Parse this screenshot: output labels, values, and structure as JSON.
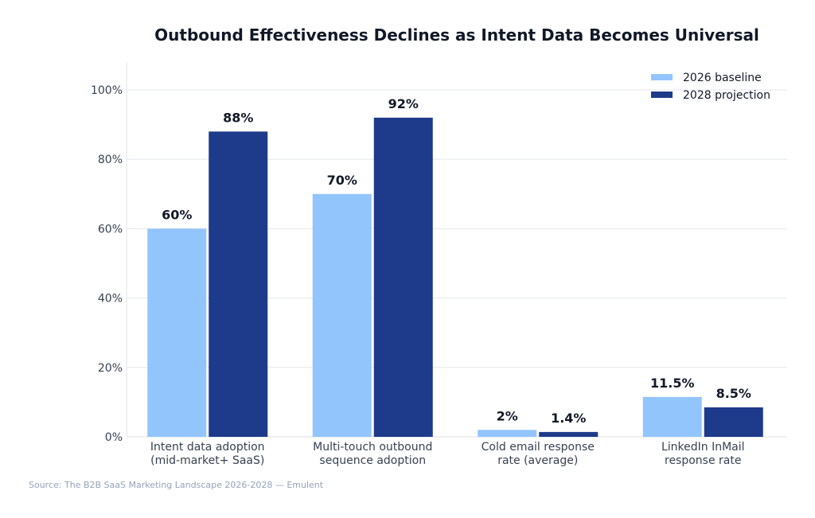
{
  "chart_data": {
    "type": "bar",
    "title": "Outbound Effectiveness Declines as Intent Data Becomes Universal",
    "categories": [
      [
        "Intent data adoption",
        "(mid-market+ SaaS)"
      ],
      [
        "Multi-touch outbound",
        "sequence adoption"
      ],
      [
        "Cold email response",
        "rate (average)"
      ],
      [
        "LinkedIn InMail",
        "response rate"
      ]
    ],
    "series": [
      {
        "name": "2026 baseline",
        "color": "#93c5fd",
        "values": [
          60,
          70,
          2,
          11.5
        ],
        "labels": [
          "60%",
          "70%",
          "2%",
          "11.5%"
        ]
      },
      {
        "name": "2028 projection",
        "color": "#1e3a8a",
        "values": [
          88,
          92,
          1.4,
          8.5
        ],
        "labels": [
          "88%",
          "92%",
          "1.4%",
          "8.5%"
        ]
      }
    ],
    "ylim": [
      0,
      108
    ],
    "yticks": [
      0,
      20,
      40,
      60,
      80,
      100
    ],
    "ytick_labels": [
      "0%",
      "20%",
      "40%",
      "60%",
      "80%",
      "100%"
    ],
    "xlabel": "",
    "ylabel": "",
    "grid": true,
    "legend": "top-right"
  },
  "source": "Source: The B2B SaaS Marketing Landscape 2026-2028 — Emulent"
}
